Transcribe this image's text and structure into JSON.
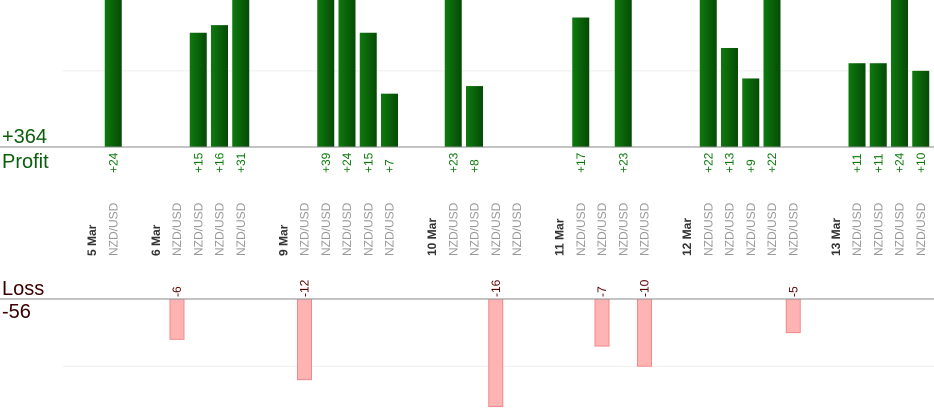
{
  "chart_data": {
    "type": "bar",
    "profit_total": "+364",
    "profit_label": "Profit",
    "loss_label": "Loss",
    "loss_total": "-56",
    "dates": [
      "5 Mar",
      null,
      null,
      "6 Mar",
      null,
      null,
      null,
      null,
      null,
      "9 Mar",
      null,
      null,
      null,
      null,
      null,
      null,
      "10 Mar",
      null,
      null,
      null,
      null,
      null,
      "11 Mar",
      null,
      null,
      null,
      null,
      null,
      "12 Mar",
      null,
      null,
      null,
      null,
      null,
      null,
      "13 Mar",
      null,
      null,
      null,
      null
    ],
    "categories": [
      null,
      "NZD/USD",
      null,
      null,
      "NZD/USD",
      "NZD/USD",
      "NZD/USD",
      "NZD/USD",
      null,
      null,
      "NZD/USD",
      "NZD/USD",
      "NZD/USD",
      "NZD/USD",
      "NZD/USD",
      null,
      null,
      "NZD/USD",
      "NZD/USD",
      "NZD/USD",
      "NZD/USD",
      null,
      null,
      "NZD/USD",
      "NZD/USD",
      "NZD/USD",
      "NZD/USD",
      null,
      null,
      "NZD/USD",
      "NZD/USD",
      "NZD/USD",
      "NZD/USD",
      "NZD/USD",
      null,
      null,
      "NZD/USD",
      "NZD/USD",
      "NZD/USD",
      "NZD/USD"
    ],
    "series": [
      {
        "name": "Profit",
        "color": "#0b5e0b",
        "ylim": [
          0,
          19.3
        ],
        "yticks": [
          10
        ],
        "values": [
          null,
          24,
          null,
          null,
          null,
          15,
          16,
          31,
          null,
          null,
          null,
          39,
          24,
          15,
          7,
          null,
          null,
          23,
          8,
          null,
          null,
          null,
          null,
          17,
          null,
          23,
          null,
          null,
          null,
          22,
          13,
          9,
          22,
          null,
          null,
          null,
          11,
          11,
          24,
          10
        ],
        "value_labels": [
          null,
          "+24",
          null,
          null,
          null,
          "+15",
          "+16",
          "+31",
          null,
          null,
          null,
          "+39",
          "+24",
          "+15",
          "+7",
          null,
          null,
          "+23",
          "+8",
          null,
          null,
          null,
          null,
          "+17",
          null,
          "+23",
          null,
          null,
          null,
          "+22",
          "+13",
          "+9",
          "+22",
          null,
          null,
          null,
          "+11",
          "+11",
          "+24",
          "+10"
        ]
      },
      {
        "name": "Loss",
        "color": "#ffb3b3",
        "ylim": [
          -18,
          0
        ],
        "yticks": [
          -10
        ],
        "values": [
          null,
          null,
          null,
          null,
          -6,
          null,
          null,
          null,
          null,
          null,
          -12,
          null,
          null,
          null,
          null,
          null,
          null,
          null,
          null,
          -16,
          null,
          null,
          null,
          null,
          -7,
          null,
          -10,
          null,
          null,
          null,
          null,
          null,
          null,
          -5,
          null,
          null,
          null,
          null,
          null,
          null
        ]
      }
    ]
  }
}
